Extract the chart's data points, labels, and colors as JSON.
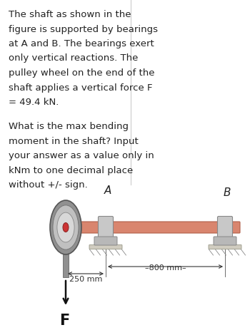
{
  "background_color": "#ffffff",
  "text_block": [
    "The shaft as shown in the",
    "figure is supported by bearings",
    "at A and B. The bearings exert",
    "only vertical reactions. The",
    "pulley wheel on the end of the",
    "shaft applies a vertical force F",
    "= 49.4 kN."
  ],
  "text_block2": [
    "What is the max bending",
    "moment in the shaft? Input",
    "your answer as a value only in",
    "kNm to one decimal place",
    "without +/- sign."
  ],
  "text_fontsize": 9.5,
  "divider_color": "#cccccc",
  "shaft_color": "#d9856e",
  "shaft_edge_color": "#b0604a",
  "bearing_color": "#c8c8c8",
  "bearing_edge_color": "#888888",
  "ground_color": "#bbbbbb",
  "pulley_outer_color": "#909090",
  "pulley_mid_color": "#c0c0c0",
  "pulley_inner_color": "#d8d8d8",
  "hub_color": "#cc3333",
  "arrow_color": "#111111",
  "dim_color": "#333333",
  "label_A": "A",
  "label_B": "B",
  "label_F": "F",
  "dim_250": "250 mm",
  "dim_800": "–800 mm–"
}
